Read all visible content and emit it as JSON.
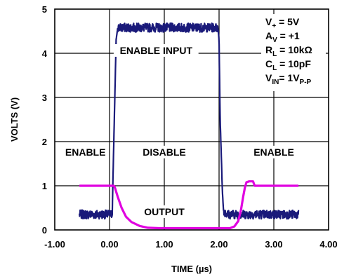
{
  "chart_data": {
    "type": "line",
    "xlabel": "TIME (µs)",
    "ylabel": "VOLTS (V)",
    "xlim": [
      -1.0,
      4.0
    ],
    "ylim": [
      0,
      5
    ],
    "xticks": [
      -1.0,
      0.0,
      1.0,
      2.0,
      3.0,
      4.0
    ],
    "xtick_labels": [
      "-1.00",
      "0.00",
      "1.00",
      "2.00",
      "3.00",
      "4.00"
    ],
    "yticks": [
      0,
      1,
      2,
      3,
      4,
      5
    ],
    "ytick_labels": [
      "0",
      "1",
      "2",
      "3",
      "4",
      "5"
    ],
    "grid": true,
    "series": [
      {
        "name": "ENABLE INPUT",
        "color": "#1a1a7a",
        "noisy": true,
        "x": [
          -0.55,
          0.05,
          0.06,
          0.12,
          0.15,
          1.98,
          2.0,
          2.02,
          2.06,
          2.08,
          2.12,
          2.15,
          3.45
        ],
        "y": [
          0.35,
          0.35,
          1.0,
          4.3,
          4.58,
          4.58,
          4.3,
          2.5,
          0.9,
          0.45,
          0.38,
          0.35,
          0.35
        ]
      },
      {
        "name": "OUTPUT",
        "color": "#e000e0",
        "noisy": false,
        "x": [
          -0.55,
          0.08,
          0.1,
          0.15,
          0.22,
          0.3,
          0.4,
          0.55,
          0.7,
          0.9,
          1.2,
          2.2,
          2.28,
          2.35,
          2.4,
          2.44,
          2.47,
          2.5,
          2.55,
          2.62,
          2.65,
          2.7,
          3.45
        ],
        "y": [
          1.0,
          1.0,
          0.95,
          0.75,
          0.5,
          0.3,
          0.18,
          0.09,
          0.05,
          0.04,
          0.04,
          0.04,
          0.08,
          0.2,
          0.45,
          0.75,
          0.95,
          1.08,
          1.1,
          1.1,
          1.0,
          1.0,
          1.0
        ]
      }
    ],
    "annotations": [
      {
        "text": "ENABLE INPUT",
        "x": 0.85,
        "y": 4.0
      },
      {
        "text": "ENABLE",
        "x": -0.44,
        "y": 1.7
      },
      {
        "text": "DISABLE",
        "x": 1.0,
        "y": 1.7
      },
      {
        "text": "ENABLE",
        "x": 3.0,
        "y": 1.7
      },
      {
        "text": "OUTPUT",
        "x": 1.0,
        "y": 0.35
      }
    ],
    "legend_block": [
      {
        "main": "V",
        "sub": "+",
        "rest": " = 5V"
      },
      {
        "main": "A",
        "sub": "V",
        "rest": " = +1"
      },
      {
        "main": "R",
        "sub": "L",
        "rest": " = 10kΩ"
      },
      {
        "main": "C",
        "sub": "L",
        "rest": " = 10pF"
      },
      {
        "main": "V",
        "sub": "IN",
        "rest": "= 1V",
        "sub2": "P-P"
      }
    ]
  }
}
